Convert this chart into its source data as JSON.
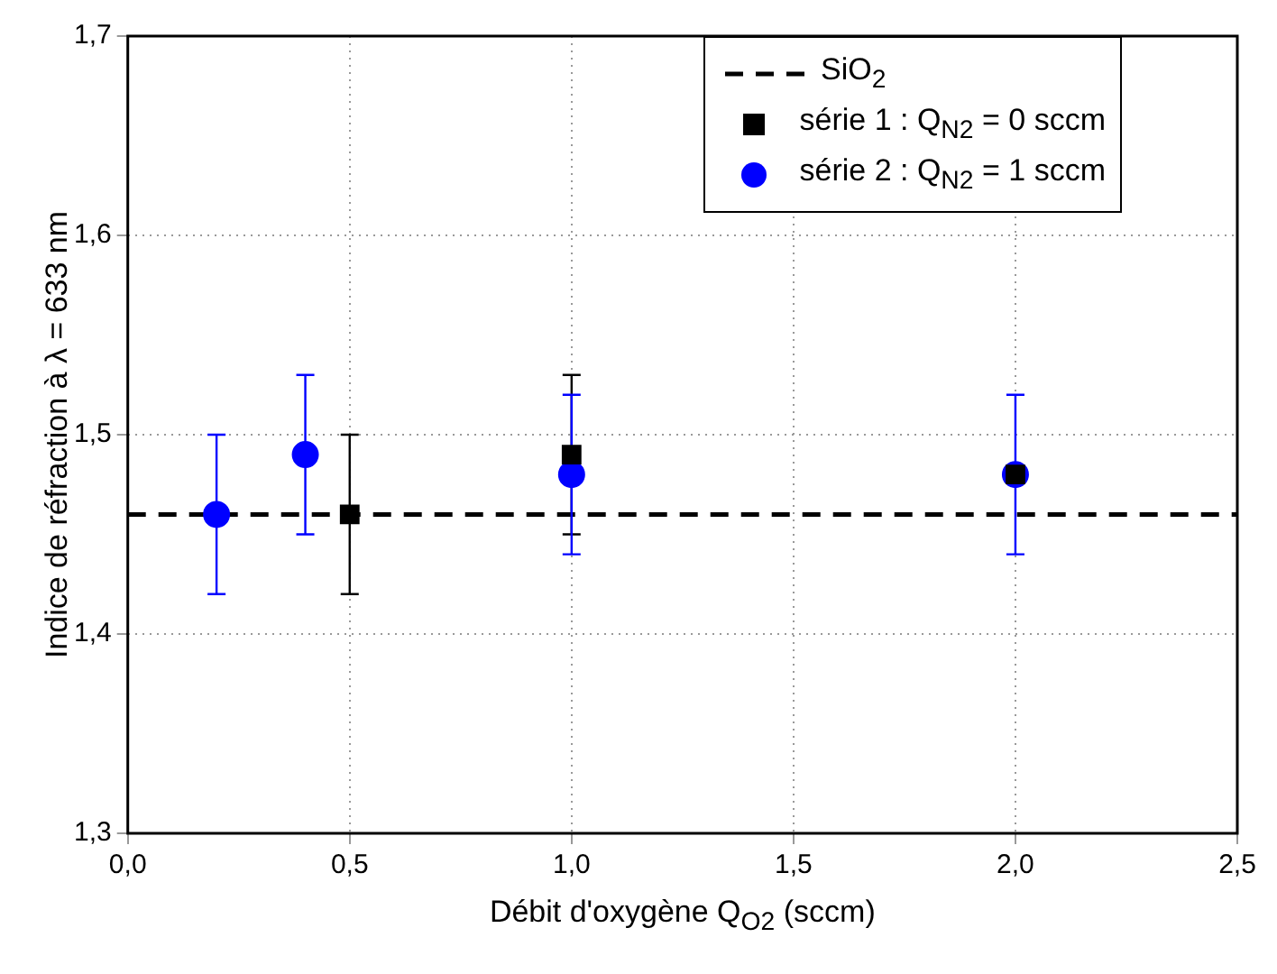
{
  "chart_data": {
    "type": "scatter",
    "xlabel": "Débit d'oxygène Q$_{O2}$ (sccm)",
    "ylabel": "Indice de réfraction à λ = 633 nm",
    "xlim": [
      0,
      2.5
    ],
    "xticks": [
      {
        "value": 0,
        "label": "0,0"
      },
      {
        "value": 0.5,
        "label": "0,5"
      },
      {
        "value": 1,
        "label": "1,0"
      },
      {
        "value": 1.5,
        "label": "1,5"
      },
      {
        "value": 2,
        "label": "2,0"
      },
      {
        "value": 2.5,
        "label": "2,5"
      }
    ],
    "ylim": [
      1.3,
      1.7
    ],
    "yticks": [
      {
        "value": 1.3,
        "label": "1,3"
      },
      {
        "value": 1.4,
        "label": "1,4"
      },
      {
        "value": 1.5,
        "label": "1,5"
      },
      {
        "value": 1.6,
        "label": "1,6"
      },
      {
        "value": 1.7,
        "label": "1,7"
      }
    ],
    "grid": true,
    "legend": "top right",
    "ref_lines": [
      {
        "axis": "y",
        "value": 1.46,
        "label": "SiO$_{2}$",
        "color": "#000000",
        "line_style": "dashed"
      }
    ],
    "series": [
      {
        "name": "série 1 : Q$_{N2}$ = 0 sccm",
        "color": "#000000",
        "marker": "square",
        "x": [
          0.5,
          1.0,
          2.0
        ],
        "values": [
          1.46,
          1.49,
          1.48
        ],
        "errors": [
          0.04,
          0.04,
          null
        ]
      },
      {
        "name": "série 2 : Q$_{N2}$ = 1 sccm",
        "color": "#0000ff",
        "marker": "circle",
        "x": [
          0.2,
          0.4,
          1.0,
          2.0
        ],
        "values": [
          1.46,
          1.49,
          1.48,
          1.48
        ],
        "errors": [
          0.04,
          0.04,
          0.04,
          0.04
        ]
      }
    ]
  }
}
